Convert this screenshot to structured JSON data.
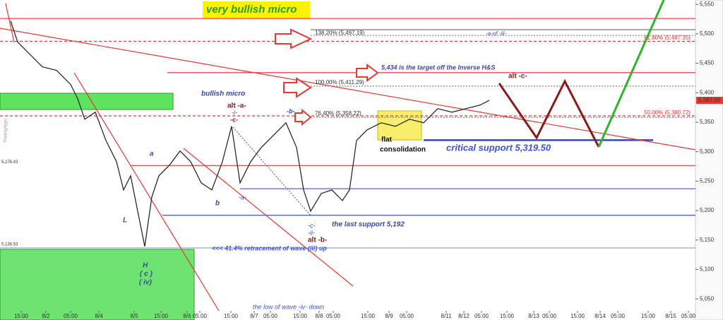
{
  "chart_data": {
    "type": "line",
    "series": [
      {
        "name": "price",
        "color": "#2a2a2a",
        "x": [
          3,
          5,
          8,
          12,
          16,
          20,
          22,
          24,
          27,
          30,
          33,
          35,
          37,
          39,
          41,
          43,
          45,
          48,
          51,
          54,
          57,
          60,
          63,
          65.6,
          68,
          71,
          74,
          78,
          81,
          84,
          86,
          88,
          91,
          94,
          97,
          99,
          101,
          104,
          108,
          112,
          116,
          120,
          124,
          128,
          132,
          136,
          138.6
        ],
        "values": [
          5522,
          5486,
          5468,
          5444,
          5438,
          5414,
          5390,
          5355,
          5367,
          5319,
          5283,
          5235,
          5259,
          5199,
          5139,
          5223,
          5259,
          5277,
          5301,
          5283,
          5247,
          5235,
          5283,
          5343,
          5247,
          5283,
          5307,
          5331,
          5349,
          5307,
          5235,
          5199,
          5229,
          5235,
          5217,
          5235,
          5319,
          5337,
          5349,
          5343,
          5355,
          5349,
          5373,
          5367,
          5373,
          5379,
          5387
        ]
      }
    ],
    "last_price": {
      "value": 5387,
      "label": "5,387.00"
    },
    "xlim": [
      0,
      197
    ],
    "ylim": [
      5025,
      5555
    ],
    "xticks": [
      {
        "value": 6,
        "label": "15:00"
      },
      {
        "value": 13,
        "label": "8/2"
      },
      {
        "value": 20,
        "label": "05:00"
      },
      {
        "value": 28,
        "label": "8/4"
      },
      {
        "value": 38,
        "label": "8/5"
      },
      {
        "value": 45.6,
        "label": "15:00"
      },
      {
        "value": 53,
        "label": "8/6"
      },
      {
        "value": 56.6,
        "label": "05:00"
      },
      {
        "value": 65.4,
        "label": "15:00"
      },
      {
        "value": 72,
        "label": "8/7"
      },
      {
        "value": 76.6,
        "label": "05:00"
      },
      {
        "value": 85,
        "label": "15:00"
      },
      {
        "value": 90.4,
        "label": "8/8"
      },
      {
        "value": 94.4,
        "label": "05:00"
      },
      {
        "value": 104.2,
        "label": "15:00"
      },
      {
        "value": 110.2,
        "label": "8/9"
      },
      {
        "value": 115.2,
        "label": "05:00"
      },
      {
        "value": 126.4,
        "label": "8/11"
      },
      {
        "value": 131.4,
        "label": "8/12"
      },
      {
        "value": 136.4,
        "label": "05:00"
      },
      {
        "value": 143.6,
        "label": "15:00"
      },
      {
        "value": 151.2,
        "label": "8/13"
      },
      {
        "value": 155.6,
        "label": "05:00"
      },
      {
        "value": 163.6,
        "label": "15:00"
      },
      {
        "value": 170,
        "label": "8/14"
      },
      {
        "value": 175,
        "label": "05:00"
      },
      {
        "value": 183.6,
        "label": "15:00"
      },
      {
        "value": 190,
        "label": "8/15"
      },
      {
        "value": 195,
        "label": "05:00"
      }
    ],
    "yticks": [
      {
        "value": 5550,
        "label": "5,550"
      },
      {
        "value": 5500,
        "label": "5,500"
      },
      {
        "value": 5450,
        "label": "5,450"
      },
      {
        "value": 5400,
        "label": "5,400"
      },
      {
        "value": 5350,
        "label": "5,350"
      },
      {
        "value": 5300,
        "label": "5,300"
      },
      {
        "value": 5250,
        "label": "5,250"
      },
      {
        "value": 5200,
        "label": "5,200"
      },
      {
        "value": 5150,
        "label": "5,150"
      },
      {
        "value": 5100,
        "label": "5,100"
      },
      {
        "value": 5050,
        "label": "5,050"
      }
    ],
    "levels": [
      {
        "value": 5526,
        "color": "#e53935"
      },
      {
        "value": 5507,
        "color": "#777"
      },
      {
        "value": 5497.19,
        "color": "#888"
      },
      {
        "value": 5487.35,
        "color": "#e53935"
      },
      {
        "value": 5434,
        "color": "#e53935"
      },
      {
        "value": 5411.29,
        "color": "#888"
      },
      {
        "value": 5360.72,
        "color": "#e53935"
      },
      {
        "value": 5358.22,
        "color": "#888"
      },
      {
        "value": 5319.5,
        "color": "#3949ab"
      },
      {
        "value": 5276.43,
        "color": "#e53935"
      },
      {
        "value": 5237,
        "color": "#3f51d8"
      },
      {
        "value": 5192,
        "color": "#3f51d8"
      },
      {
        "value": 5136.53,
        "color": "#90a4e0"
      }
    ],
    "level_labels": [
      {
        "value": 5276.43,
        "label": "5,276.43"
      },
      {
        "value": 5136.53,
        "label": "5,136.53"
      }
    ],
    "annotations": [
      "very bullish micro",
      "138.20% (5,497.19)",
      "-a-of -iii-",
      "61.80% (5,487.35)",
      "5,434 is the target off the Inverse H&S",
      "alt -c-",
      "100.00% (5,411.29)",
      "bullish micro",
      "alt -a-",
      "-i-",
      "-c-",
      "-b-",
      "76.40% (5,358.22)",
      "50.00% (5,360.72)",
      "flat",
      "consolidation",
      "critical support 5,319.50",
      "a",
      "b",
      "-a-",
      "L",
      "-c-",
      "-ii-",
      "alt -b-",
      "the last support 5,192",
      "<<< 41.4% retracement of wave (iii) up",
      "H",
      "( c )",
      "( iv)",
      "the low of wave -iv- down",
      "TradingApps"
    ]
  }
}
